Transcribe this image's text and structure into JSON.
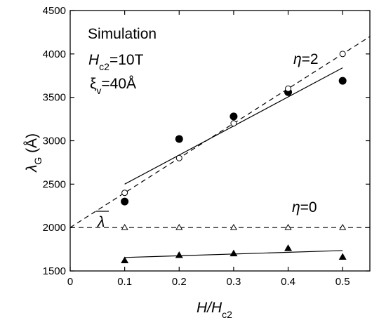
{
  "chart_data": {
    "type": "scatter",
    "xlabel": {
      "main": "H/H",
      "sub": "c2"
    },
    "ylabel": {
      "main": "λ",
      "sub": "G",
      "tail": " (Å)"
    },
    "xlim": [
      0,
      0.55
    ],
    "ylim": [
      1500,
      4500
    ],
    "x_ticks": [
      0,
      0.1,
      0.2,
      0.3,
      0.4,
      0.5
    ],
    "x_tick_labels": [
      "0",
      "0.1",
      "0.2",
      "0.3",
      "0.4",
      "0.5"
    ],
    "y_ticks": [
      1500,
      2000,
      2500,
      3000,
      3500,
      4000,
      4500
    ],
    "y_tick_labels": [
      "1500",
      "2000",
      "2500",
      "3000",
      "3500",
      "4000",
      "4500"
    ],
    "grid": false,
    "series": [
      {
        "marker": "filled-circle",
        "color": "#000000",
        "x": [
          0.1,
          0.2,
          0.3,
          0.4,
          0.5
        ],
        "y": [
          2300,
          3020,
          3280,
          3560,
          3690
        ]
      },
      {
        "marker": "open-circle",
        "color": "#000000",
        "x": [
          0.1,
          0.2,
          0.3,
          0.4,
          0.5
        ],
        "y": [
          2400,
          2800,
          3200,
          3600,
          4000
        ]
      },
      {
        "marker": "open-triangle",
        "color": "#000000",
        "x": [
          0.1,
          0.2,
          0.3,
          0.4,
          0.5
        ],
        "y": [
          2000,
          2000,
          2000,
          2000,
          2000
        ]
      },
      {
        "marker": "filled-triangle",
        "color": "#000000",
        "x": [
          0.1,
          0.2,
          0.3,
          0.4,
          0.5
        ],
        "y": [
          1620,
          1680,
          1700,
          1760,
          1660
        ]
      }
    ],
    "lines": [
      {
        "style": "solid",
        "x": [
          0.1,
          0.5
        ],
        "y": [
          2500,
          3840
        ]
      },
      {
        "style": "dashed",
        "x": [
          0,
          0.55
        ],
        "y": [
          2000,
          4200
        ]
      },
      {
        "style": "dashed",
        "x": [
          0,
          0.55
        ],
        "y": [
          2000,
          2000
        ]
      },
      {
        "style": "solid",
        "x": [
          0.1,
          0.5
        ],
        "y": [
          1655,
          1735
        ]
      }
    ],
    "annotations": {
      "simulation": "Simulation",
      "hc2_main": "H",
      "hc2_sub": "c2",
      "hc2_value": "=10T",
      "xi_main": "ξ",
      "xi_sub": "v",
      "xi_value": "=40Å",
      "eta2_symbol": "η",
      "eta2_value": "=2",
      "eta0_symbol": "η",
      "eta0_value": "=0",
      "lambda_bar": "λ"
    }
  }
}
